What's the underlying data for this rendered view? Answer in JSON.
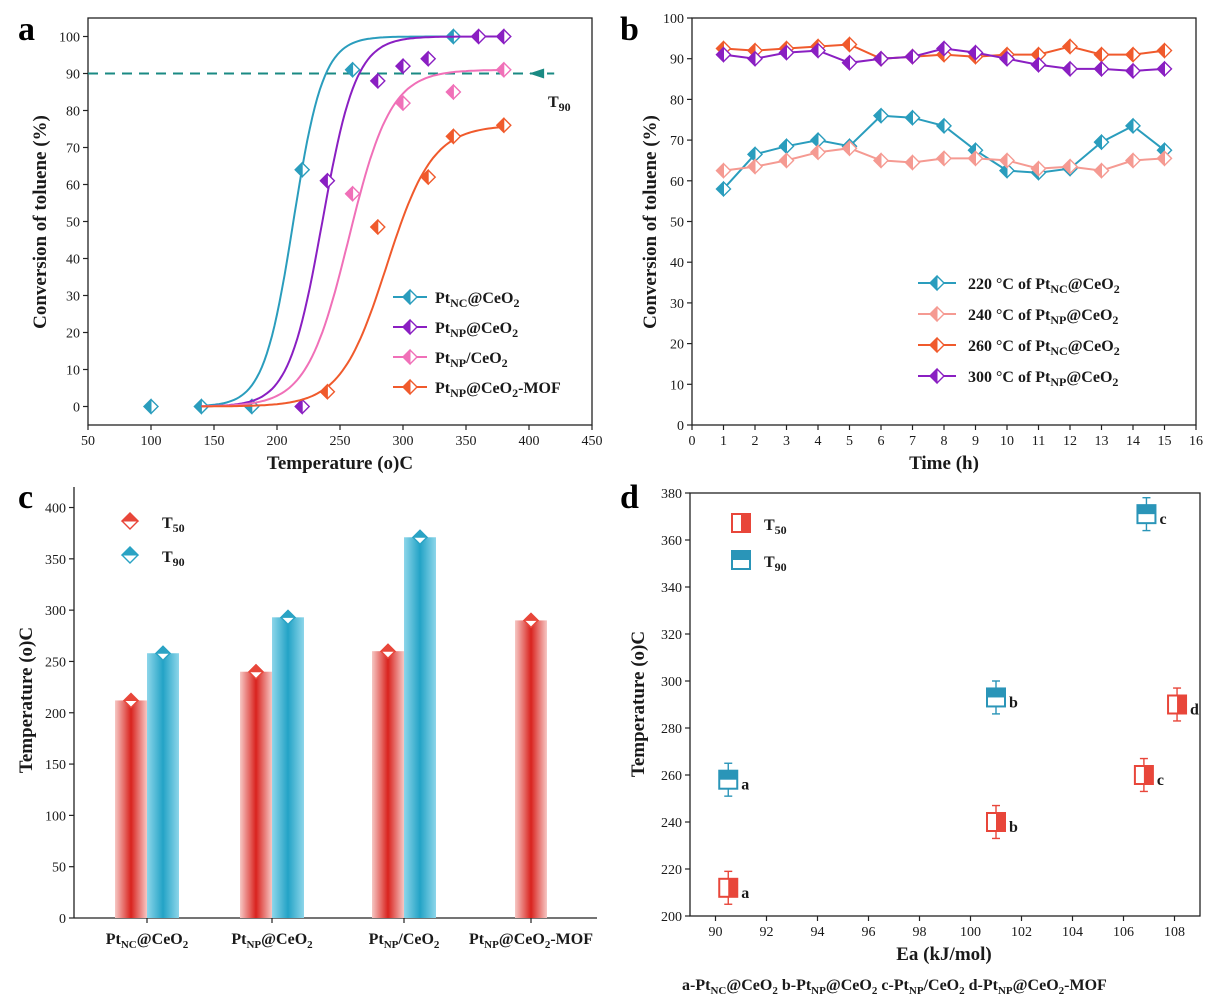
{
  "panels": {
    "a": {
      "letter": "a",
      "xlabel": "Temperature (°C)",
      "ylabel": "Conversion of toluene (%)",
      "xlim": [
        50,
        450
      ],
      "ylim": [
        -5,
        105
      ],
      "xticks": [
        50,
        100,
        150,
        200,
        250,
        300,
        350,
        400,
        450
      ],
      "yticks": [
        0,
        10,
        20,
        30,
        40,
        50,
        60,
        70,
        80,
        90,
        100
      ],
      "t90_label": "T90",
      "t90_value": 90,
      "series": [
        {
          "name": "PtNC@CeO2",
          "color": "#2a9dbd",
          "points": [
            [
              100,
              0
            ],
            [
              140,
              0
            ],
            [
              180,
              0
            ],
            [
              220,
              64
            ],
            [
              260,
              91
            ],
            [
              340,
              100
            ]
          ],
          "curve": {
            "mid": 213,
            "k": 0.085
          }
        },
        {
          "name": "PtNP@CeO2",
          "color": "#8a1fc2",
          "points": [
            [
              220,
              0
            ],
            [
              240,
              61
            ],
            [
              280,
              88
            ],
            [
              300,
              92
            ],
            [
              320,
              94
            ],
            [
              360,
              100
            ],
            [
              380,
              100
            ]
          ],
          "curve": {
            "mid": 236,
            "k": 0.075
          }
        },
        {
          "name": "PtNP/CeO2",
          "color": "#f070b8",
          "points": [
            [
              260,
              57.5
            ],
            [
              300,
              82
            ],
            [
              340,
              85
            ],
            [
              380,
              91
            ]
          ],
          "curve": {
            "mid": 257,
            "k": 0.06
          }
        },
        {
          "name": "PtNP@CeO2-MOF",
          "color": "#f05a2c",
          "points": [
            [
              240,
              4
            ],
            [
              280,
              48.5
            ],
            [
              320,
              62
            ],
            [
              340,
              73
            ],
            [
              380,
              76
            ]
          ],
          "curve": {
            "mid": 287,
            "k": 0.055
          }
        }
      ]
    },
    "b": {
      "letter": "b",
      "xlabel": "Time (h)",
      "ylabel": "Conversion of toluene (%)",
      "xlim": [
        0,
        16
      ],
      "ylim": [
        0,
        100
      ],
      "xticks": [
        0,
        1,
        2,
        3,
        4,
        5,
        6,
        7,
        8,
        9,
        10,
        11,
        12,
        13,
        14,
        15,
        16
      ],
      "yticks": [
        0,
        10,
        20,
        30,
        40,
        50,
        60,
        70,
        80,
        90,
        100
      ],
      "x": [
        1,
        2,
        3,
        4,
        5,
        6,
        7,
        8,
        9,
        10,
        11,
        12,
        13,
        14,
        15
      ],
      "series": [
        {
          "name": "220 °C of PtNC@CeO2",
          "color": "#2a9dbd",
          "values": [
            58,
            66.5,
            68.5,
            70,
            68.5,
            76,
            75.5,
            73.5,
            67.5,
            62.5,
            62,
            63,
            69.5,
            73.5,
            67.5
          ]
        },
        {
          "name": "240 °C of PtNP@CeO2",
          "color": "#f59a92",
          "values": [
            62.5,
            63.5,
            65,
            67,
            68,
            65,
            64.5,
            65.5,
            65.5,
            65,
            63,
            63.5,
            62.5,
            65,
            65.5
          ]
        },
        {
          "name": "260 °C of PtNC@CeO2",
          "color": "#f05a2c",
          "values": [
            92.5,
            92,
            92.5,
            93,
            93.5,
            90,
            90.5,
            91,
            90.5,
            91,
            91,
            93,
            91,
            91,
            92
          ]
        },
        {
          "name": "300 °C of PtNP@CeO2",
          "color": "#8a1fc2",
          "values": [
            91,
            90,
            91.5,
            92,
            89,
            90,
            90.5,
            92.5,
            91.5,
            90,
            88.5,
            87.5,
            87.5,
            87,
            87.5
          ]
        }
      ]
    },
    "c": {
      "letter": "c",
      "ylabel": "Temperature (°C)",
      "ylim": [
        0,
        420
      ],
      "yticks": [
        0,
        50,
        100,
        150,
        200,
        250,
        300,
        350,
        400
      ],
      "categories": [
        "PtNC@CeO2",
        "PtNP@CeO2",
        "PtNP/CeO2",
        "PtNP@CeO2-MOF"
      ],
      "series": [
        {
          "name": "T50",
          "color": "#e8463a",
          "values": [
            212,
            240,
            260,
            290
          ]
        },
        {
          "name": "T90",
          "color": "#2aa3c4",
          "values": [
            258,
            293,
            371,
            null
          ]
        }
      ]
    },
    "d": {
      "letter": "d",
      "xlabel": "Ea (kJ/mol)",
      "ylabel": "Temperature (°C)",
      "xlim": [
        89,
        109
      ],
      "ylim": [
        200,
        380
      ],
      "xticks": [
        90,
        92,
        94,
        96,
        98,
        100,
        102,
        104,
        106,
        108
      ],
      "yticks": [
        200,
        220,
        240,
        260,
        280,
        300,
        320,
        340,
        360,
        380
      ],
      "caption": "a-PtNC@CeO2  b-PtNP@CeO2  c-PtNP/CeO2  d-PtNP@CeO2-MOF",
      "series": [
        {
          "name": "T50",
          "color": "#e8463a",
          "points": [
            {
              "x": 90.5,
              "y": 212,
              "err": 7,
              "tag": "a"
            },
            {
              "x": 101,
              "y": 240,
              "err": 7,
              "tag": "b"
            },
            {
              "x": 106.8,
              "y": 260,
              "err": 7,
              "tag": "c"
            },
            {
              "x": 108.1,
              "y": 290,
              "err": 7,
              "tag": "d"
            }
          ]
        },
        {
          "name": "T90",
          "color": "#2a95b8",
          "points": [
            {
              "x": 90.5,
              "y": 258,
              "err": 7,
              "tag": "a"
            },
            {
              "x": 101,
              "y": 293,
              "err": 7,
              "tag": "b"
            },
            {
              "x": 106.9,
              "y": 371,
              "err": 7,
              "tag": "c"
            }
          ]
        }
      ]
    }
  }
}
